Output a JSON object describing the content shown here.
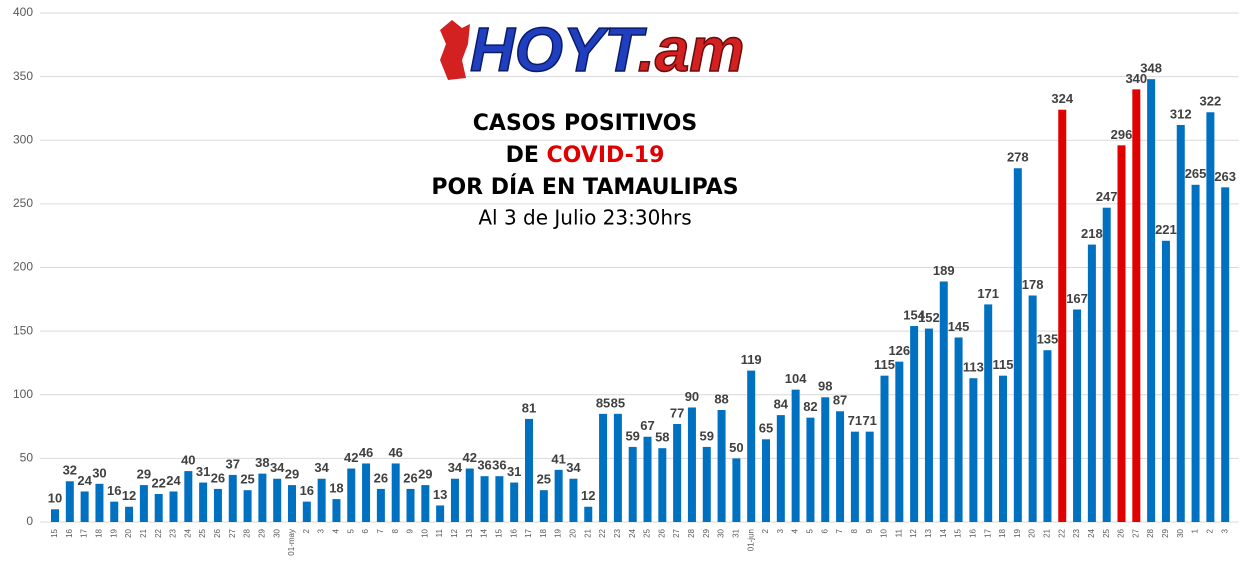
{
  "chart_data": {
    "type": "bar",
    "logo": [
      "HOYT",
      ".am"
    ],
    "title": [
      "CASOS POSITIVOS",
      "DE",
      "COVID-19",
      "POR DÍA EN TAMAULIPAS"
    ],
    "subtitle": "Al 3 de Julio 23:30hrs",
    "categories": [
      "15",
      "16",
      "17",
      "18",
      "19",
      "20",
      "21",
      "22",
      "23",
      "24",
      "25",
      "26",
      "27",
      "28",
      "29",
      "30",
      "01-may",
      "2",
      "3",
      "4",
      "5",
      "6",
      "7",
      "8",
      "9",
      "10",
      "11",
      "12",
      "13",
      "14",
      "15",
      "16",
      "17",
      "18",
      "19",
      "20",
      "21",
      "22",
      "23",
      "24",
      "25",
      "26",
      "27",
      "28",
      "29",
      "30",
      "31",
      "01-jun",
      "2",
      "3",
      "4",
      "5",
      "6",
      "7",
      "8",
      "9",
      "10",
      "11",
      "12",
      "13",
      "14",
      "15",
      "16",
      "17",
      "18",
      "19",
      "20",
      "21",
      "22",
      "23",
      "24",
      "25",
      "26",
      "27",
      "28",
      "29",
      "30",
      "1",
      "2",
      "3"
    ],
    "values": [
      10,
      32,
      24,
      30,
      16,
      12,
      29,
      22,
      24,
      40,
      31,
      26,
      37,
      25,
      38,
      34,
      29,
      16,
      34,
      18,
      42,
      46,
      26,
      46,
      26,
      29,
      13,
      34,
      42,
      36,
      36,
      31,
      81,
      25,
      41,
      34,
      12,
      85,
      85,
      59,
      67,
      58,
      77,
      90,
      59,
      88,
      50,
      119,
      65,
      84,
      104,
      82,
      98,
      87,
      71,
      71,
      115,
      126,
      154,
      152,
      189,
      145,
      113,
      171,
      115,
      278,
      178,
      135,
      324,
      167,
      218,
      247,
      296,
      340,
      348,
      221,
      312,
      265,
      322,
      263
    ],
    "colors": [
      "#0070c0",
      "#0070c0",
      "#0070c0",
      "#0070c0",
      "#0070c0",
      "#0070c0",
      "#0070c0",
      "#0070c0",
      "#0070c0",
      "#0070c0",
      "#0070c0",
      "#0070c0",
      "#0070c0",
      "#0070c0",
      "#0070c0",
      "#0070c0",
      "#0070c0",
      "#0070c0",
      "#0070c0",
      "#0070c0",
      "#0070c0",
      "#0070c0",
      "#0070c0",
      "#0070c0",
      "#0070c0",
      "#0070c0",
      "#0070c0",
      "#0070c0",
      "#0070c0",
      "#0070c0",
      "#0070c0",
      "#0070c0",
      "#0070c0",
      "#0070c0",
      "#0070c0",
      "#0070c0",
      "#0070c0",
      "#0070c0",
      "#0070c0",
      "#0070c0",
      "#0070c0",
      "#0070c0",
      "#0070c0",
      "#0070c0",
      "#0070c0",
      "#0070c0",
      "#0070c0",
      "#0070c0",
      "#0070c0",
      "#0070c0",
      "#0070c0",
      "#0070c0",
      "#0070c0",
      "#0070c0",
      "#0070c0",
      "#0070c0",
      "#0070c0",
      "#0070c0",
      "#0070c0",
      "#0070c0",
      "#0070c0",
      "#0070c0",
      "#0070c0",
      "#0070c0",
      "#0070c0",
      "#0070c0",
      "#0070c0",
      "#0070c0",
      "#e00000",
      "#0070c0",
      "#0070c0",
      "#0070c0",
      "#e00000",
      "#e00000",
      "#0070c0",
      "#0070c0",
      "#0070c0",
      "#0070c0",
      "#0070c0",
      "#0070c0"
    ],
    "ylim": [
      0,
      400
    ],
    "yticks": [
      0,
      50,
      100,
      150,
      200,
      250,
      300,
      350,
      400
    ],
    "grid": true
  }
}
